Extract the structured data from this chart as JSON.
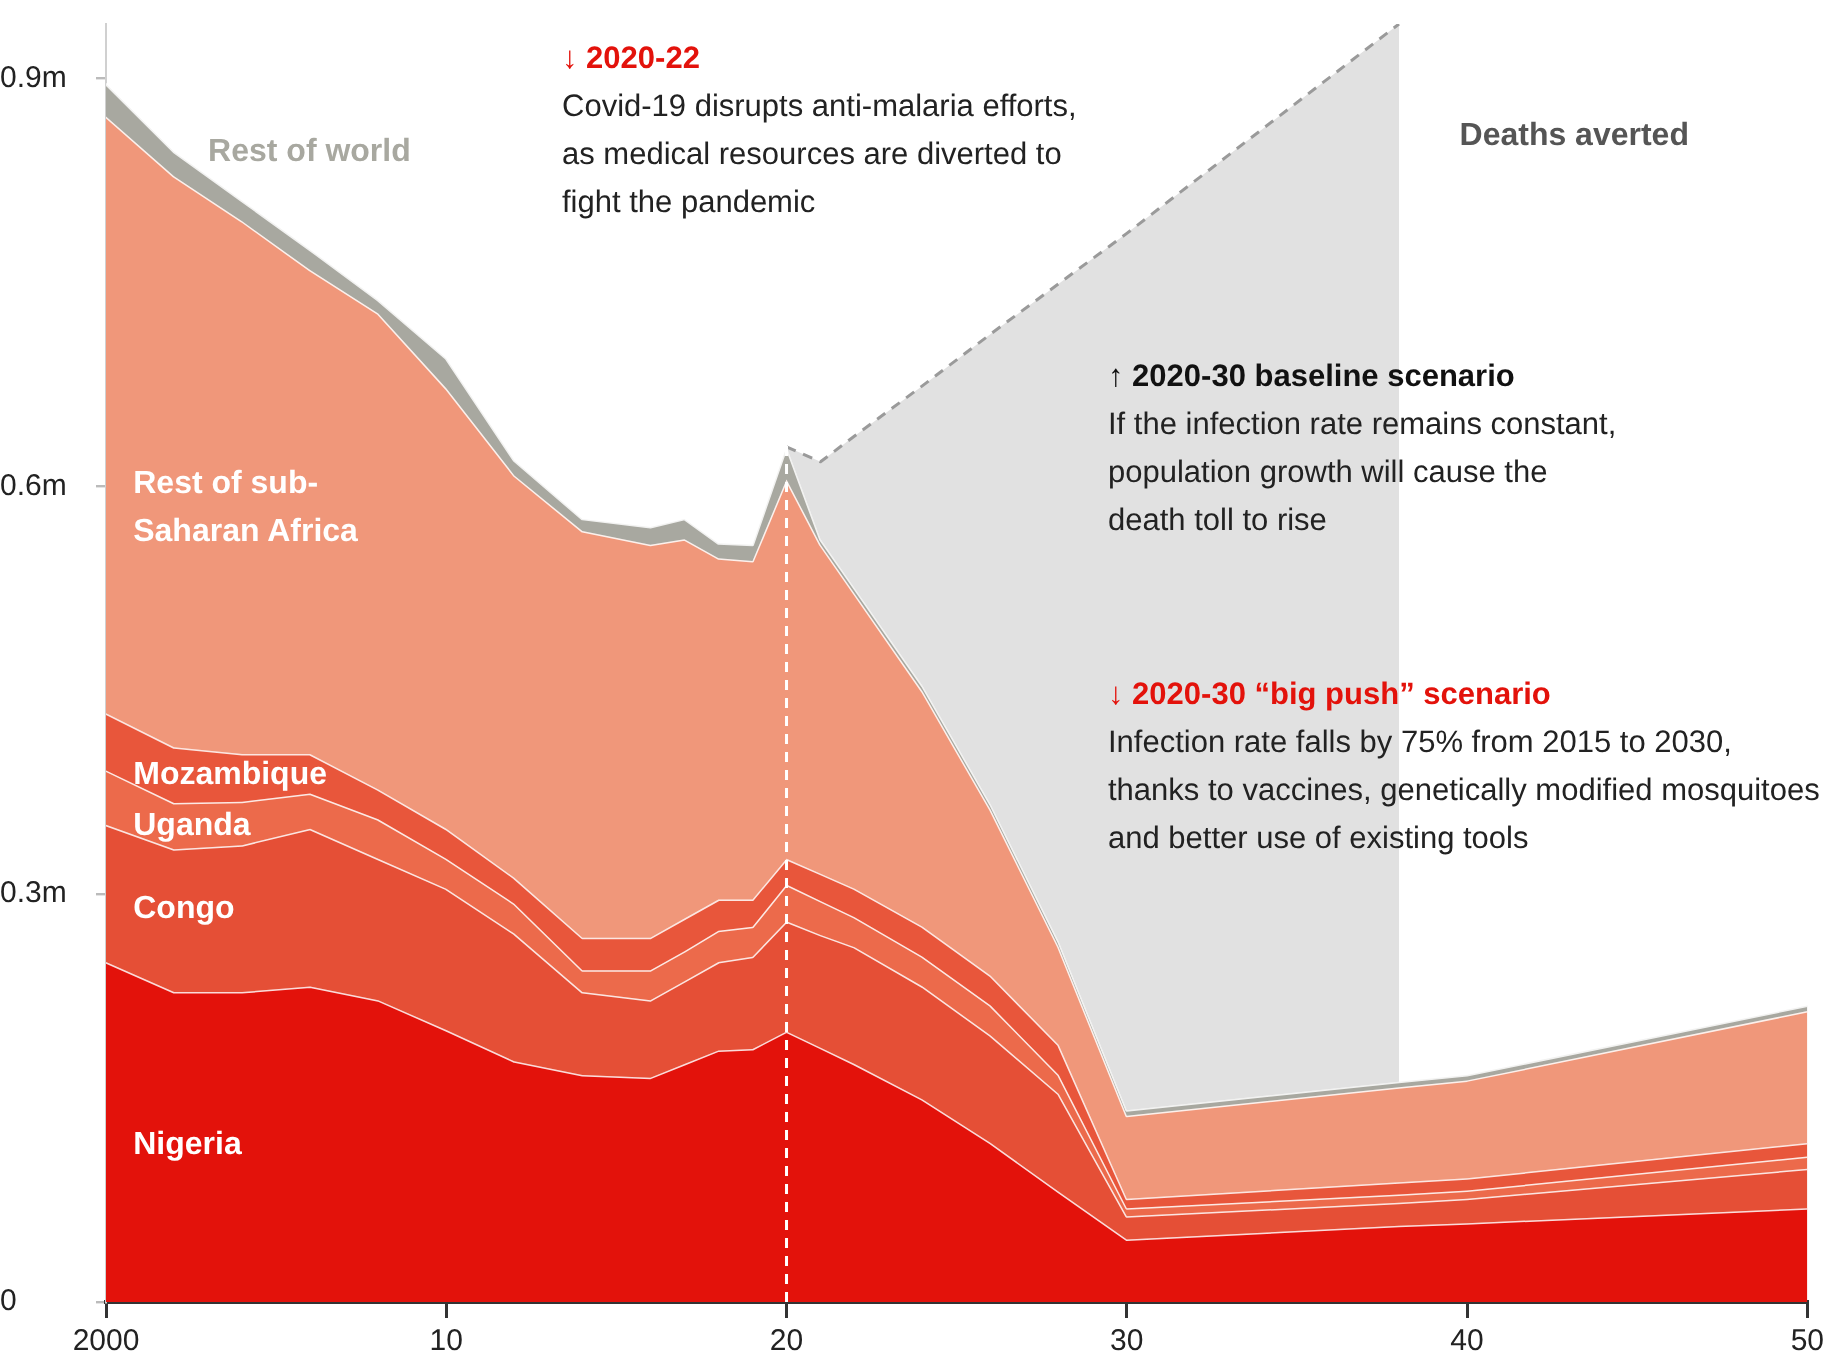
{
  "chart_data": {
    "type": "area",
    "stacked": true,
    "x": [
      2000,
      2002,
      2004,
      2006,
      2008,
      2010,
      2012,
      2014,
      2016,
      2017,
      2018,
      2019,
      2020,
      2021,
      2022,
      2024,
      2026,
      2028,
      2030,
      2038,
      2040,
      2050
    ],
    "xlim": [
      2000,
      2050
    ],
    "xticks": [
      {
        "value": 2000,
        "label": "2000"
      },
      {
        "value": 2010,
        "label": "10"
      },
      {
        "value": 2020,
        "label": "20"
      },
      {
        "value": 2030,
        "label": "30"
      },
      {
        "value": 2040,
        "label": "40"
      },
      {
        "value": 2050,
        "label": "50"
      }
    ],
    "ylim": [
      0,
      0.94
    ],
    "yticks": [
      0,
      {
        "value": 0.3,
        "label": "0.3m"
      },
      {
        "value": 0.6,
        "label": "0.6m"
      },
      {
        "value": 0.9,
        "label": "0.9m"
      }
    ],
    "series": [
      {
        "name": "Nigeria",
        "color": "#e3120b",
        "values": [
          0.25,
          0.228,
          0.228,
          0.232,
          0.222,
          0.2,
          0.177,
          0.167,
          0.165,
          0.175,
          0.185,
          0.186,
          0.199,
          0.187,
          0.175,
          0.149,
          0.117,
          0.081,
          0.046,
          0.056,
          0.058,
          0.069
        ]
      },
      {
        "name": "Congo",
        "color": "#e54f36",
        "values": [
          0.101,
          0.105,
          0.108,
          0.116,
          0.104,
          0.104,
          0.094,
          0.061,
          0.057,
          0.061,
          0.065,
          0.068,
          0.081,
          0.083,
          0.086,
          0.083,
          0.079,
          0.072,
          0.017,
          0.017,
          0.018,
          0.029
        ]
      },
      {
        "name": "Uganda",
        "color": "#ec6a4b",
        "values": [
          0.04,
          0.034,
          0.032,
          0.026,
          0.029,
          0.022,
          0.022,
          0.016,
          0.022,
          0.022,
          0.023,
          0.022,
          0.027,
          0.025,
          0.022,
          0.022,
          0.022,
          0.014,
          0.006,
          0.006,
          0.006,
          0.009
        ]
      },
      {
        "name": "Mozambique",
        "color": "#e8563b",
        "values": [
          0.042,
          0.041,
          0.035,
          0.029,
          0.022,
          0.022,
          0.019,
          0.024,
          0.024,
          0.024,
          0.023,
          0.02,
          0.019,
          0.02,
          0.021,
          0.022,
          0.022,
          0.022,
          0.007,
          0.009,
          0.009,
          0.01
        ]
      },
      {
        "name": "Rest of sub-Saharan Africa",
        "color": "#f0977a",
        "values": [
          0.439,
          0.42,
          0.392,
          0.356,
          0.35,
          0.324,
          0.296,
          0.299,
          0.289,
          0.279,
          0.251,
          0.249,
          0.279,
          0.242,
          0.217,
          0.173,
          0.122,
          0.072,
          0.061,
          0.07,
          0.072,
          0.097
        ]
      },
      {
        "name": "Rest of world",
        "color": "#a8a8a0",
        "values": [
          0.024,
          0.018,
          0.015,
          0.015,
          0.01,
          0.022,
          0.011,
          0.009,
          0.013,
          0.015,
          0.011,
          0.012,
          0.024,
          0.004,
          0.004,
          0.004,
          0.004,
          0.004,
          0.004,
          0.004,
          0.004,
          0.004
        ]
      },
      {
        "name": "Deaths averted",
        "color": "#e1e1e1",
        "line_style": "dashed",
        "values": [
          null,
          null,
          null,
          null,
          null,
          null,
          null,
          null,
          null,
          null,
          null,
          null,
          0,
          0.057,
          0.112,
          0.221,
          0.346,
          0.484,
          0.645,
          0.778,
          null,
          null
        ]
      }
    ],
    "ref_lines": [
      {
        "axis": "x",
        "value": 2020,
        "color": "#ffffff",
        "line_style": "dashed"
      }
    ],
    "annotations": [
      "↓ 2020-22",
      "Covid-19 disrupts anti-malaria efforts, as medical resources are diverted to fight the pandemic",
      "↑ 2020-30 baseline scenario",
      "If the infection rate remains constant, population growth will cause the death toll to rise",
      "↓ 2020-30 “big push” scenario",
      "Infection rate falls by 75% from 2015 to 2030, thanks to vaccines, genetically modified mosquitoes and better use of existing tools"
    ]
  }
}
